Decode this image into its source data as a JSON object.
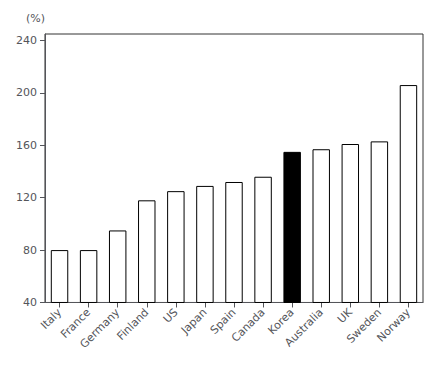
{
  "chart_data": {
    "type": "bar",
    "categories": [
      "Italy",
      "France",
      "Germany",
      "Finland",
      "US",
      "Japan",
      "Spain",
      "Canada",
      "Korea",
      "Australia",
      "UK",
      "Sweden",
      "Norway"
    ],
    "values": [
      80,
      80,
      95,
      118,
      125,
      129,
      132,
      136,
      155,
      157,
      161,
      163,
      206
    ],
    "colors": [
      "white",
      "white",
      "white",
      "white",
      "white",
      "white",
      "white",
      "white",
      "black",
      "white",
      "white",
      "white",
      "white"
    ],
    "ylabel": "(%)",
    "ylim": [
      40,
      245
    ],
    "yticks": [
      40,
      80,
      120,
      160,
      200,
      240
    ],
    "grid": false
  }
}
